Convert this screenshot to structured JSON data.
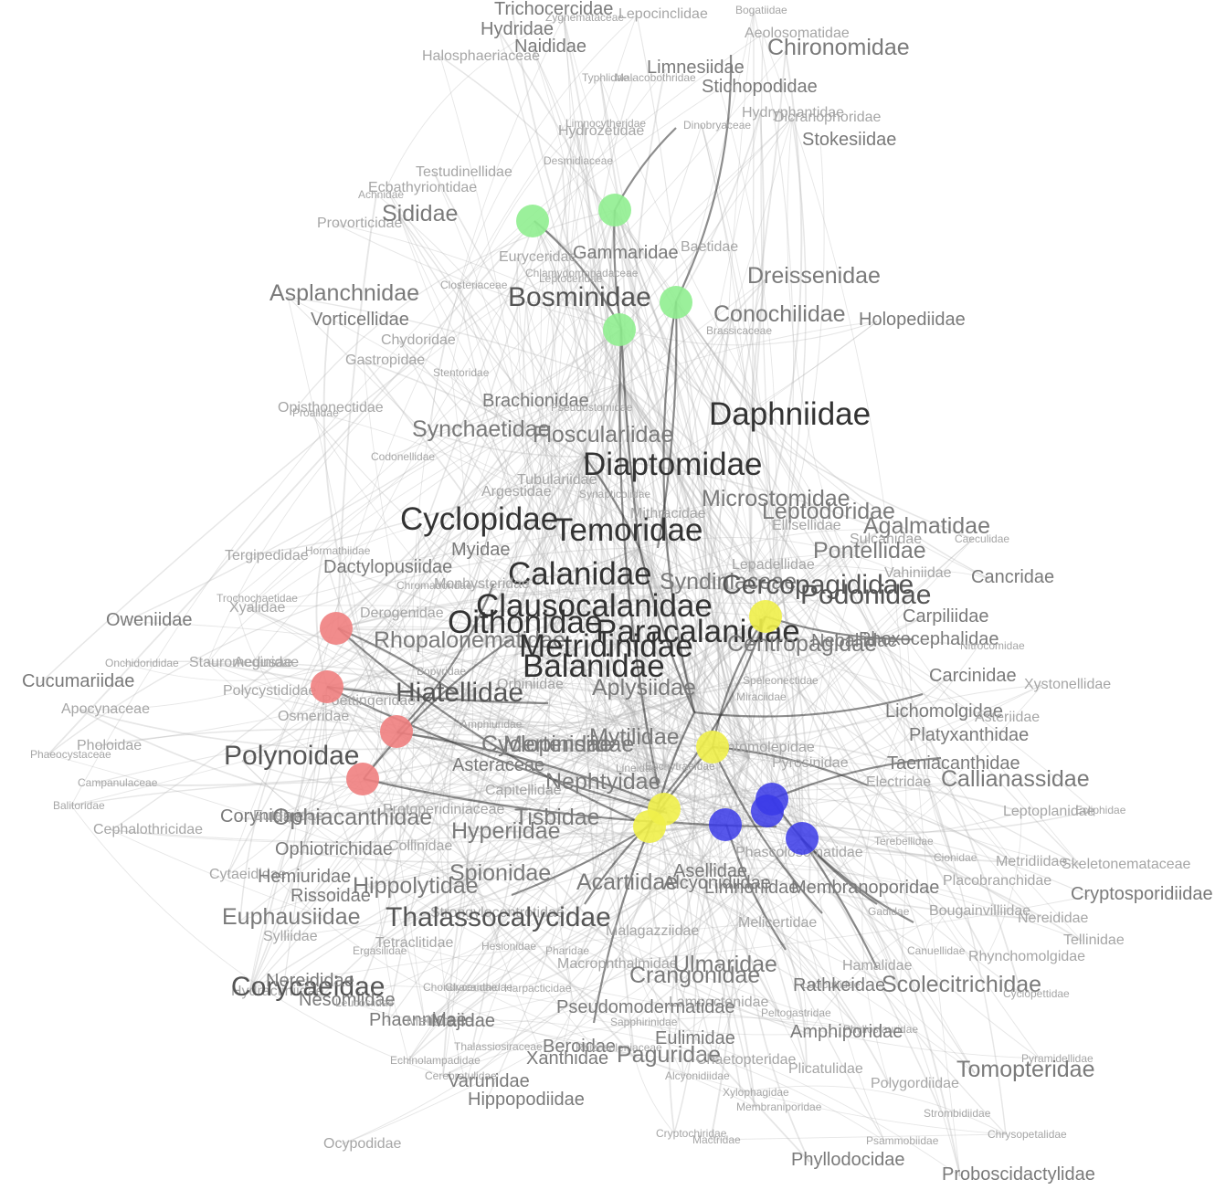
{
  "colors": {
    "green": "#90ee90",
    "red": "#f08080",
    "yellow": "#f0f04a",
    "blue": "#3a3ae8",
    "label_light": "#a6a6a6",
    "label_mid": "#7a7a7a",
    "label_dark": "#555555",
    "label_darkest": "#333333"
  },
  "labels": [
    {
      "text": "Trichocercidae",
      "tier": 3
    },
    {
      "text": "Zygnemataceae",
      "tier": 1
    },
    {
      "text": "Lepocinclidae",
      "tier": 2
    },
    {
      "text": "Hydridae",
      "tier": 3
    },
    {
      "text": "Naididae",
      "tier": 3
    },
    {
      "text": "Halosphaeriaceae",
      "tier": 2
    },
    {
      "text": "Bogatiidae",
      "tier": 1
    },
    {
      "text": "Aeolosomatidae",
      "tier": 2
    },
    {
      "text": "Chironomidae",
      "tier": 4
    },
    {
      "text": "Limnesiidae",
      "tier": 3
    },
    {
      "text": "Typhlidae",
      "tier": 1
    },
    {
      "text": "Malacobothridae",
      "tier": 1
    },
    {
      "text": "Stichopodidae",
      "tier": 3
    },
    {
      "text": "Hydryphantidae",
      "tier": 2
    },
    {
      "text": "Dicranophoridae",
      "tier": 2
    },
    {
      "text": "Stokesiidae",
      "tier": 3
    },
    {
      "text": "Limnocytheridae",
      "tier": 1
    },
    {
      "text": "Hydrozetidae",
      "tier": 2
    },
    {
      "text": "Dinobryaceae",
      "tier": 1
    },
    {
      "text": "Desmidiaceae",
      "tier": 1
    },
    {
      "text": "Testudinellidae",
      "tier": 2
    },
    {
      "text": "Ecbathyriontidae",
      "tier": 2
    },
    {
      "text": "Achnidae",
      "tier": 1
    },
    {
      "text": "Provorticidae",
      "tier": 2
    },
    {
      "text": "Sididae",
      "tier": 4
    },
    {
      "text": "Euryceridae",
      "tier": 2
    },
    {
      "text": "Gammaridae",
      "tier": 3
    },
    {
      "text": "Baetidae",
      "tier": 2
    },
    {
      "text": "Chlamydomonadaceae",
      "tier": 1
    },
    {
      "text": "Leptoceridae",
      "tier": 1
    },
    {
      "text": "Closteriaceae",
      "tier": 1
    },
    {
      "text": "Dreissenidae",
      "tier": 4
    },
    {
      "text": "Asplanchnidae",
      "tier": 4
    },
    {
      "text": "Bosminidae",
      "tier": 5
    },
    {
      "text": "Vorticellidae",
      "tier": 3
    },
    {
      "text": "Conochilidae",
      "tier": 4
    },
    {
      "text": "Holopediidae",
      "tier": 3
    },
    {
      "text": "Brassicaceae",
      "tier": 1
    },
    {
      "text": "Chydoridae",
      "tier": 2
    },
    {
      "text": "Gastropidae",
      "tier": 2
    },
    {
      "text": "Stentoridae",
      "tier": 1
    },
    {
      "text": "Opisthonectidae",
      "tier": 2
    },
    {
      "text": "Proalidae",
      "tier": 1
    },
    {
      "text": "Brachionidae",
      "tier": 3
    },
    {
      "text": "Pseudostomidae",
      "tier": 1
    },
    {
      "text": "Daphniidae",
      "tier": 6
    },
    {
      "text": "Synchaetidae",
      "tier": 4
    },
    {
      "text": "Flosculariidae",
      "tier": 4
    },
    {
      "text": "Codonellidae",
      "tier": 1
    },
    {
      "text": "Diaptomidae",
      "tier": 6
    },
    {
      "text": "Tubulariidae",
      "tier": 2
    },
    {
      "text": "Argestidae",
      "tier": 2
    },
    {
      "text": "Synapticolidae",
      "tier": 1
    },
    {
      "text": "Mithracidae",
      "tier": 2
    },
    {
      "text": "Microstomidae",
      "tier": 4
    },
    {
      "text": "Leptodoridae",
      "tier": 4
    },
    {
      "text": "Cyclopidae",
      "tier": 6
    },
    {
      "text": "Temoridae",
      "tier": 6
    },
    {
      "text": "Ellisellidae",
      "tier": 2
    },
    {
      "text": "Agalmatidae",
      "tier": 4
    },
    {
      "text": "Tergipedidae",
      "tier": 2
    },
    {
      "text": "Hormathiidae",
      "tier": 1
    },
    {
      "text": "Myidae",
      "tier": 3
    },
    {
      "text": "Sulcanidae",
      "tier": 2
    },
    {
      "text": "Caeculidae",
      "tier": 1
    },
    {
      "text": "Dactylopusiidae",
      "tier": 3
    },
    {
      "text": "Pontellidae",
      "tier": 4
    },
    {
      "text": "Lepadellidae",
      "tier": 2
    },
    {
      "text": "Calanidae",
      "tier": 6
    },
    {
      "text": "Syndiniaceae",
      "tier": 4
    },
    {
      "text": "Vahiniidae",
      "tier": 2
    },
    {
      "text": "Cancridae",
      "tier": 3
    },
    {
      "text": "Chromadoridae",
      "tier": 1
    },
    {
      "text": "Monhysteridae",
      "tier": 2
    },
    {
      "text": "Cercopagididae",
      "tier": 5
    },
    {
      "text": "Oweniidae",
      "tier": 3
    },
    {
      "text": "Trochochaetidae",
      "tier": 1
    },
    {
      "text": "Xyalidae",
      "tier": 2
    },
    {
      "text": "Derogenidae",
      "tier": 2
    },
    {
      "text": "Clausocalanidae",
      "tier": 6
    },
    {
      "text": "Podonidae",
      "tier": 5
    },
    {
      "text": "Carpiliidae",
      "tier": 3
    },
    {
      "text": "Oithonidae",
      "tier": 6
    },
    {
      "text": "Paracalanidae",
      "tier": 6
    },
    {
      "text": "Rhopalonematidae",
      "tier": 4
    },
    {
      "text": "Centropagidae",
      "tier": 4
    },
    {
      "text": "Nebaliidae",
      "tier": 3
    },
    {
      "text": "Phoxocephalidae",
      "tier": 3
    },
    {
      "text": "Nitrocomidae",
      "tier": 1
    },
    {
      "text": "Onchidorididae",
      "tier": 1
    },
    {
      "text": "Stauromedusae",
      "tier": 2
    },
    {
      "text": "Aeginidae",
      "tier": 2
    },
    {
      "text": "Metridinidae",
      "tier": 6
    },
    {
      "text": "Bopyridae",
      "tier": 1
    },
    {
      "text": "Cucumariidae",
      "tier": 3
    },
    {
      "text": "Balanidae",
      "tier": 6
    },
    {
      "text": "Aplysiidae",
      "tier": 4
    },
    {
      "text": "Carcinidae",
      "tier": 3
    },
    {
      "text": "Xystonellidae",
      "tier": 2
    },
    {
      "text": "Polycystididae",
      "tier": 2
    },
    {
      "text": "Hiatellidae",
      "tier": 5
    },
    {
      "text": "Apocynaceae",
      "tier": 2
    },
    {
      "text": "Poettingeridae",
      "tier": 2
    },
    {
      "text": "Orbiniidae",
      "tier": 2
    },
    {
      "text": "Speleonectidae",
      "tier": 1
    },
    {
      "text": "Miraciidae",
      "tier": 1
    },
    {
      "text": "Osmeridae",
      "tier": 2
    },
    {
      "text": "Lichomolgidae",
      "tier": 3
    },
    {
      "text": "Asteriidae",
      "tier": 2
    },
    {
      "text": "Pholoidae",
      "tier": 2
    },
    {
      "text": "Amphiuridae",
      "tier": 1
    },
    {
      "text": "Platyxanthidae",
      "tier": 3
    },
    {
      "text": "Phaeocystaceae",
      "tier": 1
    },
    {
      "text": "Cyclopinidae",
      "tier": 4
    },
    {
      "text": "Mertensiidae",
      "tier": 4
    },
    {
      "text": "Mytilidae",
      "tier": 4
    },
    {
      "text": "Entomolepidae",
      "tier": 2
    },
    {
      "text": "Polynoidae",
      "tier": 5
    },
    {
      "text": "Lineidae",
      "tier": 1
    },
    {
      "text": "Taeniacanthidae",
      "tier": 3
    },
    {
      "text": "Asteraceae",
      "tier": 3
    },
    {
      "text": "Pyrosinidae",
      "tier": 2
    },
    {
      "text": "Nephtyidae",
      "tier": 4
    },
    {
      "text": "Electridae",
      "tier": 2
    },
    {
      "text": "Callianassidae",
      "tier": 4
    },
    {
      "text": "Campanulaceae",
      "tier": 1
    },
    {
      "text": "Capitellidae",
      "tier": 2
    },
    {
      "text": "Enchytraeidae",
      "tier": 1
    },
    {
      "text": "Balitoridae",
      "tier": 1
    },
    {
      "text": "Corynidae",
      "tier": 3
    },
    {
      "text": "Euterpidae",
      "tier": 2
    },
    {
      "text": "Ophiacanthidae",
      "tier": 4
    },
    {
      "text": "Protoperidiniaceae",
      "tier": 2
    },
    {
      "text": "Tisbidae",
      "tier": 4
    },
    {
      "text": "Leptoplanidae",
      "tier": 2
    },
    {
      "text": "Ecliphidae",
      "tier": 1
    },
    {
      "text": "Cephalothricidae",
      "tier": 2
    },
    {
      "text": "Hyperiidae",
      "tier": 4
    },
    {
      "text": "Ophiotrichidae",
      "tier": 3
    },
    {
      "text": "Collinidae",
      "tier": 2
    },
    {
      "text": "Terebellidae",
      "tier": 1
    },
    {
      "text": "Phascolosomatidae",
      "tier": 2
    },
    {
      "text": "Cionidae",
      "tier": 1
    },
    {
      "text": "Metridiidae",
      "tier": 2
    },
    {
      "text": "Skeletonemataceae",
      "tier": 2
    },
    {
      "text": "Cytaeididae",
      "tier": 2
    },
    {
      "text": "Hemiuridae",
      "tier": 3
    },
    {
      "text": "Spionidae",
      "tier": 4
    },
    {
      "text": "Asellidae",
      "tier": 3
    },
    {
      "text": "Placobranchidae",
      "tier": 2
    },
    {
      "text": "Hippolytidae",
      "tier": 4
    },
    {
      "text": "Acartiidae",
      "tier": 4
    },
    {
      "text": "Limnoriidae",
      "tier": 3
    },
    {
      "text": "Alcyonidiidae",
      "tier": 3
    },
    {
      "text": "Membranoporidae",
      "tier": 3
    },
    {
      "text": "Cryptosporidiidae",
      "tier": 3
    },
    {
      "text": "Rissoidae",
      "tier": 3
    },
    {
      "text": "Strongylocentrotidae",
      "tier": 2
    },
    {
      "text": "Thalassocalycidae",
      "tier": 5
    },
    {
      "text": "Euphausiidae",
      "tier": 4
    },
    {
      "text": "Sylliidae",
      "tier": 2
    },
    {
      "text": "Gadidae",
      "tier": 1
    },
    {
      "text": "Bougainvilliidae",
      "tier": 2
    },
    {
      "text": "Hydractiniidae",
      "tier": 2
    },
    {
      "text": "Nereididae",
      "tier": 2
    },
    {
      "text": "Melicertidae",
      "tier": 2
    },
    {
      "text": "Malagazziidae",
      "tier": 2
    },
    {
      "text": "Hesionidae",
      "tier": 1
    },
    {
      "text": "Tetraclitidae",
      "tier": 2
    },
    {
      "text": "Ergasilidae",
      "tier": 1
    },
    {
      "text": "Pharidae",
      "tier": 1
    },
    {
      "text": "Tellinidae",
      "tier": 2
    },
    {
      "text": "Canuellidae",
      "tier": 1
    },
    {
      "text": "Rhynchomolgidae",
      "tier": 2
    },
    {
      "text": "Macrophthalmidae",
      "tier": 2
    },
    {
      "text": "Ulmaridae",
      "tier": 4
    },
    {
      "text": "Hamalidae",
      "tier": 2
    },
    {
      "text": "Crangonidae",
      "tier": 4
    },
    {
      "text": "Lucicutiidae",
      "tier": 1
    },
    {
      "text": "Scolecitrichidae",
      "tier": 4
    },
    {
      "text": "Corycaeidae",
      "tier": 5
    },
    {
      "text": "Nereididae",
      "tier": 3
    },
    {
      "text": "Chondracanthidae",
      "tier": 1
    },
    {
      "text": "Glyceridae",
      "tier": 1
    },
    {
      "text": "Harpacticidae",
      "tier": 1
    },
    {
      "text": "Rathkeidae",
      "tier": 3
    },
    {
      "text": "Cyclopettidae",
      "tier": 1
    },
    {
      "text": "Nesomiidae",
      "tier": 3
    },
    {
      "text": "Leucosiidae",
      "tier": 1
    },
    {
      "text": "Lampoctenidae",
      "tier": 2
    },
    {
      "text": "Phaennidae",
      "tier": 3
    },
    {
      "text": "Meliaceae",
      "tier": 2
    },
    {
      "text": "Majidae",
      "tier": 3
    },
    {
      "text": "Pseudomodermatidae",
      "tier": 3
    },
    {
      "text": "Sapphirinidae",
      "tier": 1
    },
    {
      "text": "Peltogastridae",
      "tier": 1
    },
    {
      "text": "Phyllostauridae",
      "tier": 1
    },
    {
      "text": "Amphiporidae",
      "tier": 3
    },
    {
      "text": "Thalassiosiraceae",
      "tier": 1
    },
    {
      "text": "Beroidae",
      "tier": 3
    },
    {
      "text": "Rhizosoleniaceae",
      "tier": 1
    },
    {
      "text": "Eulimidae",
      "tier": 3
    },
    {
      "text": "Pyramidellidae",
      "tier": 1
    },
    {
      "text": "Xanthidae",
      "tier": 3
    },
    {
      "text": "Paguridae",
      "tier": 4
    },
    {
      "text": "Chaetopteridae",
      "tier": 2
    },
    {
      "text": "Plicatulidae",
      "tier": 2
    },
    {
      "text": "Tomopteridae",
      "tier": 4
    },
    {
      "text": "Echinolampadidae",
      "tier": 1
    },
    {
      "text": "Cerebratulidae",
      "tier": 1
    },
    {
      "text": "Alcyonidiidae",
      "tier": 1
    },
    {
      "text": "Polygordiidae",
      "tier": 2
    },
    {
      "text": "Varunidae",
      "tier": 3
    },
    {
      "text": "Xylophagidae",
      "tier": 1
    },
    {
      "text": "Membraniporidae",
      "tier": 1
    },
    {
      "text": "Hippopodiidae",
      "tier": 3
    },
    {
      "text": "Strombidiidae",
      "tier": 1
    },
    {
      "text": "Cryptochiridae",
      "tier": 1
    },
    {
      "text": "Mactridae",
      "tier": 1
    },
    {
      "text": "Psammobiidae",
      "tier": 1
    },
    {
      "text": "Chrysopetalidae",
      "tier": 1
    },
    {
      "text": "Ocypodidae",
      "tier": 2
    },
    {
      "text": "Phyllodocidae",
      "tier": 3
    },
    {
      "text": "Proboscidactylidae",
      "tier": 3
    },
    {
      "text": "Sabellariidae",
      "tier": 1
    }
  ]
}
